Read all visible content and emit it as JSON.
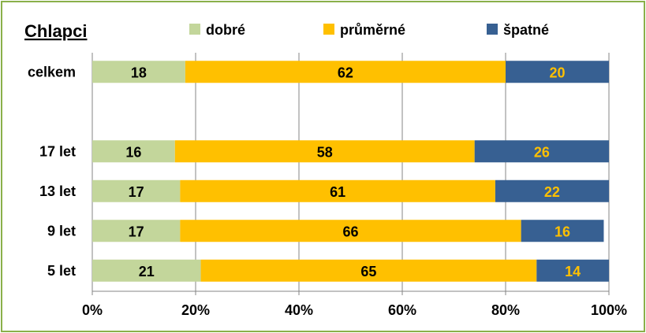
{
  "chart_data": {
    "type": "bar",
    "stacked": true,
    "orientation": "horizontal",
    "percent_scale": true,
    "title": "Chlapci",
    "categories": [
      "celkem",
      "",
      "17 let",
      "13 let",
      "9 let",
      "5 let"
    ],
    "series": [
      {
        "name": "dobré",
        "color": "#c3d69b",
        "label_color": "#000000",
        "values": [
          18,
          null,
          16,
          17,
          17,
          21
        ]
      },
      {
        "name": "průměrné",
        "color": "#ffc000",
        "label_color": "#000000",
        "values": [
          62,
          null,
          58,
          61,
          66,
          65
        ]
      },
      {
        "name": "špatné",
        "color": "#376092",
        "label_color": "#ffc000",
        "values": [
          20,
          null,
          26,
          22,
          16,
          14
        ]
      }
    ],
    "xlim": [
      0,
      100
    ],
    "x_ticks": [
      "0%",
      "20%",
      "40%",
      "60%",
      "80%",
      "100%"
    ],
    "grid": true,
    "legend": "top"
  }
}
